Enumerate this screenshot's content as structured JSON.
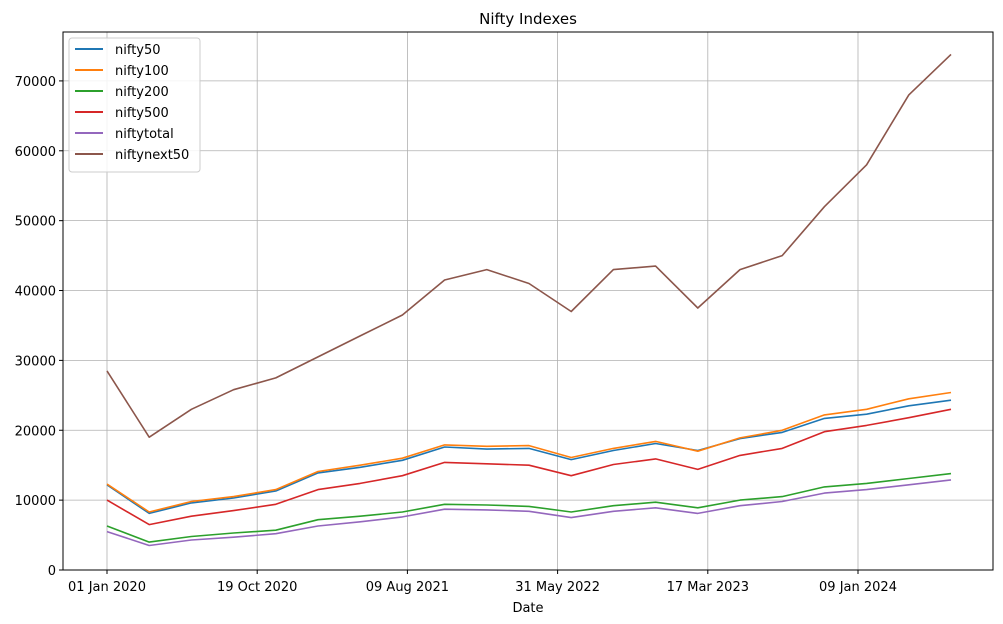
{
  "chart_data": {
    "type": "line",
    "title": "Nifty Indexes",
    "xlabel": "Date",
    "ylabel": "",
    "x_ticks": [
      "01 Jan 2020",
      "19 Oct 2020",
      "09 Aug 2021",
      "31 May 2022",
      "17 Mar 2023",
      "09 Jan 2024"
    ],
    "y_ticks": [
      "0",
      "10000",
      "20000",
      "30000",
      "40000",
      "50000",
      "60000",
      "70000"
    ],
    "ylim": [
      0,
      77000
    ],
    "grid": true,
    "legend_position": "top-left",
    "x": [
      "2020-01",
      "2020-03",
      "2020-04",
      "2020-06",
      "2020-09",
      "2020-12",
      "2021-03",
      "2021-06",
      "2021-09",
      "2021-12",
      "2022-03",
      "2022-06",
      "2022-09",
      "2022-12",
      "2023-03",
      "2023-06",
      "2023-09",
      "2023-12",
      "2024-03",
      "2024-06",
      "2024-08"
    ],
    "series": [
      {
        "name": "nifty50",
        "color": "#1f77b4",
        "values": [
          12200,
          8100,
          9600,
          10300,
          11300,
          13900,
          14700,
          15700,
          17600,
          17300,
          17400,
          15800,
          17100,
          18100,
          17100,
          18800,
          19700,
          21700,
          22300,
          23500,
          24300
        ]
      },
      {
        "name": "nifty100",
        "color": "#ff7f0e",
        "values": [
          12300,
          8300,
          9800,
          10500,
          11500,
          14100,
          15000,
          16000,
          17900,
          17700,
          17800,
          16100,
          17400,
          18400,
          17000,
          18900,
          20000,
          22200,
          23000,
          24500,
          25400
        ]
      },
      {
        "name": "nifty200",
        "color": "#2ca02c",
        "values": [
          6300,
          4000,
          4800,
          5300,
          5700,
          7200,
          7700,
          8300,
          9400,
          9300,
          9100,
          8300,
          9200,
          9700,
          8900,
          10000,
          10500,
          11900,
          12400,
          13100,
          13800
        ]
      },
      {
        "name": "nifty500",
        "color": "#d62728",
        "values": [
          10000,
          6500,
          7700,
          8500,
          9400,
          11500,
          12400,
          13500,
          15400,
          15200,
          15000,
          13500,
          15100,
          15900,
          14400,
          16400,
          17400,
          19800,
          20700,
          21800,
          23000
        ]
      },
      {
        "name": "niftytotal",
        "color": "#9467bd",
        "values": [
          5500,
          3500,
          4300,
          4700,
          5200,
          6300,
          6900,
          7600,
          8700,
          8600,
          8400,
          7500,
          8400,
          8900,
          8100,
          9200,
          9800,
          11000,
          11500,
          12200,
          12900
        ]
      },
      {
        "name": "niftynext50",
        "color": "#8c564b",
        "values": [
          28500,
          19000,
          23000,
          25800,
          27500,
          30500,
          33500,
          36500,
          41500,
          43000,
          41000,
          37000,
          43000,
          43500,
          37500,
          43000,
          45000,
          52000,
          58000,
          68000,
          73800
        ]
      }
    ]
  }
}
